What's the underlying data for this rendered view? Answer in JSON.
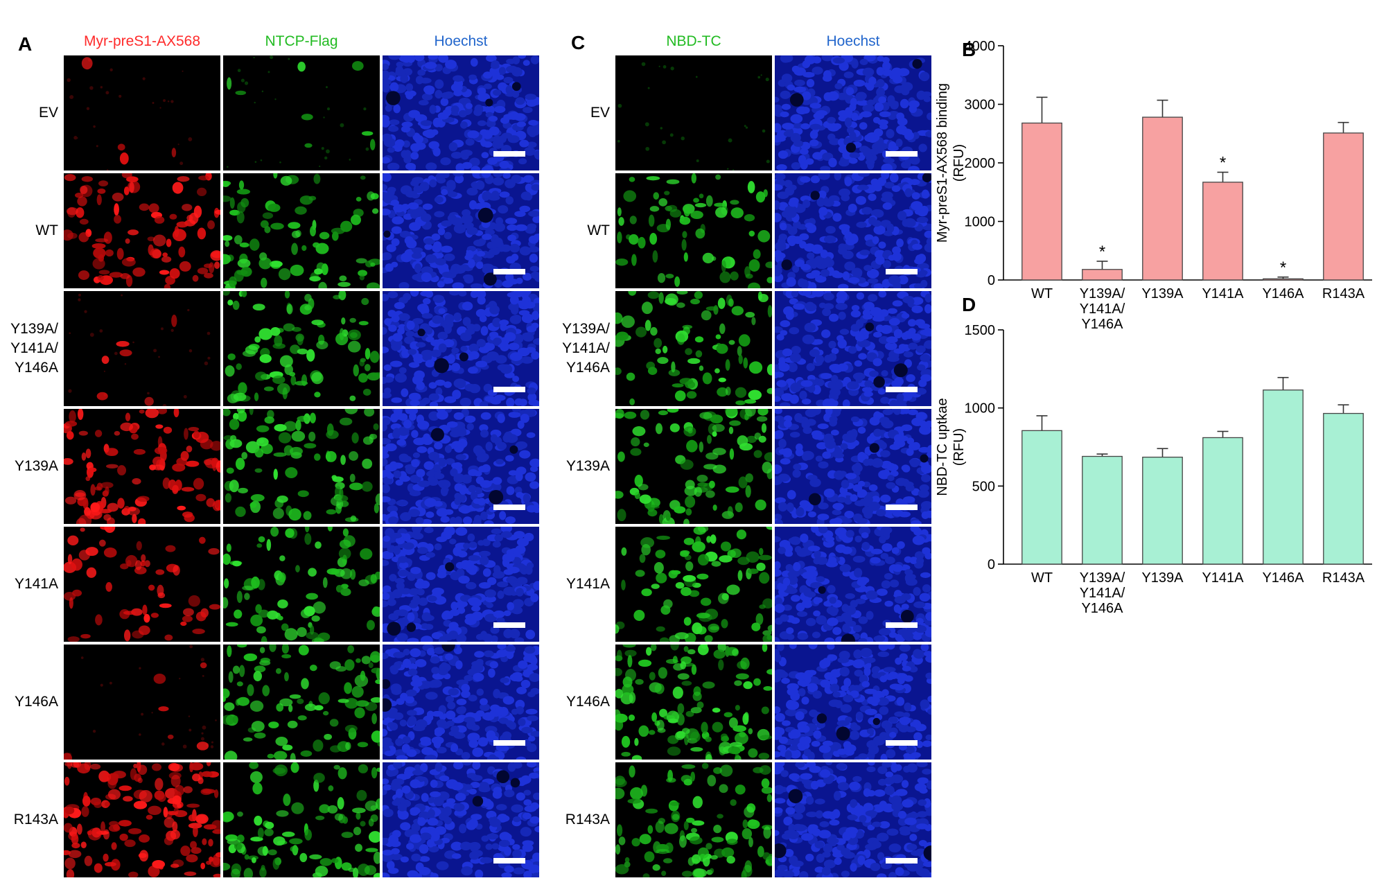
{
  "panelA": {
    "letter": "A",
    "headers": [
      {
        "label": "Myr-preS1-AX568",
        "color": "#ff2a2a",
        "channel": "red"
      },
      {
        "label": "NTCP-Flag",
        "color": "#22bb22",
        "channel": "green"
      },
      {
        "label": "Hoechst",
        "color": "#2266cc",
        "channel": "blue"
      }
    ],
    "rows": [
      {
        "label": "EV",
        "red": 0.02,
        "green": 0.04
      },
      {
        "label": "WT",
        "red": 0.45,
        "green": 0.4
      },
      {
        "label": "Y139A/\nY141A/\nY146A",
        "red": 0.03,
        "green": 0.42
      },
      {
        "label": "Y139A",
        "red": 0.55,
        "green": 0.45
      },
      {
        "label": "Y141A",
        "red": 0.28,
        "green": 0.38
      },
      {
        "label": "Y146A",
        "red": 0.03,
        "green": 0.45
      },
      {
        "label": "R143A",
        "red": 0.7,
        "green": 0.45
      }
    ]
  },
  "panelC": {
    "letter": "C",
    "headers": [
      {
        "label": "NBD-TC",
        "color": "#22bb22",
        "channel": "green"
      },
      {
        "label": "Hoechst",
        "color": "#2266cc",
        "channel": "blue"
      }
    ],
    "rows": [
      {
        "label": "EV",
        "green": 0.0
      },
      {
        "label": "WT",
        "green": 0.35
      },
      {
        "label": "Y139A/\nY141A/\nY146A",
        "green": 0.4
      },
      {
        "label": "Y139A",
        "green": 0.45
      },
      {
        "label": "Y141A",
        "green": 0.42
      },
      {
        "label": "Y146A",
        "green": 0.6
      },
      {
        "label": "R143A",
        "green": 0.5
      }
    ]
  },
  "chart_data": [
    {
      "panel": "B",
      "type": "bar",
      "categories": [
        "WT",
        "Y139A/\nY141A/\nY146A",
        "Y139A",
        "Y141A",
        "Y146A",
        "R143A"
      ],
      "values": [
        2680,
        180,
        2780,
        1670,
        20,
        2510
      ],
      "errors": [
        440,
        140,
        290,
        170,
        30,
        180
      ],
      "significance": [
        "",
        "*",
        "",
        "*",
        "*",
        ""
      ],
      "ylabel": "Myr-preS1-AX568 binding\n(RFU)",
      "ylim": [
        0,
        4000
      ],
      "yticks": [
        0,
        1000,
        2000,
        3000,
        4000
      ],
      "bar_color": "#f7a1a1",
      "grid": false
    },
    {
      "panel": "D",
      "type": "bar",
      "categories": [
        "WT",
        "Y139A/\nY141A/\nY146A",
        "Y139A",
        "Y141A",
        "Y146A",
        "R143A"
      ],
      "values": [
        855,
        690,
        685,
        810,
        1115,
        965
      ],
      "errors": [
        95,
        15,
        55,
        40,
        80,
        55
      ],
      "significance": [
        "",
        "",
        "",
        "",
        "",
        ""
      ],
      "ylabel": "NBD-TC uptkae\n(RFU)",
      "ylim": [
        0,
        1500
      ],
      "yticks": [
        0,
        500,
        1000,
        1500
      ],
      "bar_color": "#a8f0d4",
      "grid": false
    }
  ]
}
